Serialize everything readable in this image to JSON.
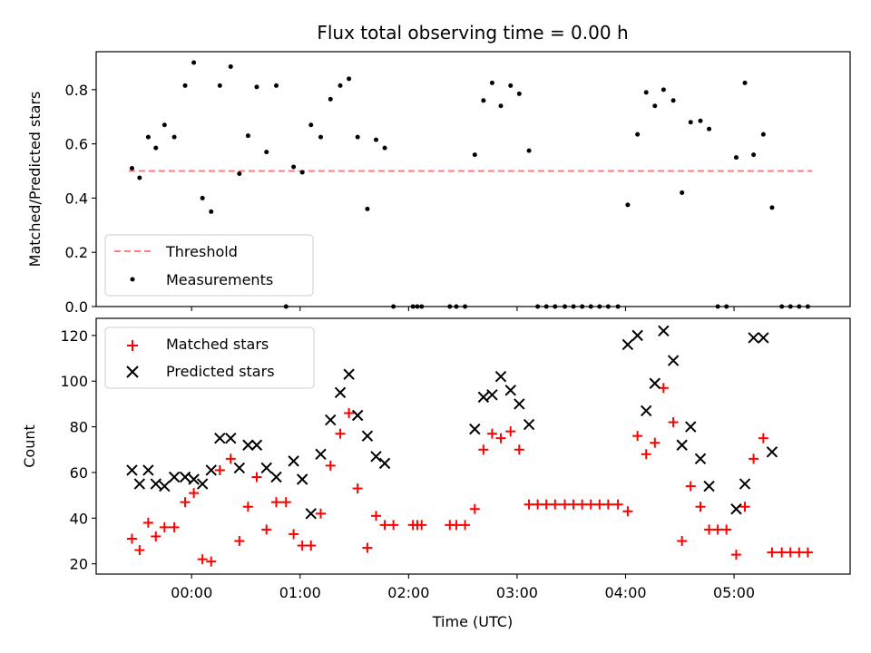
{
  "chart_data": [
    {
      "type": "scatter",
      "title": "Flux total observing time = 0.00 h",
      "xlabel": "",
      "ylabel": "Matched/Predicted stars",
      "xlim": [
        -0.88,
        6.07
      ],
      "ylim": [
        0,
        0.94
      ],
      "yticks": [
        0.0,
        0.2,
        0.4,
        0.6,
        0.8
      ],
      "ytick_labels": [
        "0.0",
        "0.2",
        "0.4",
        "0.6",
        "0.8"
      ],
      "xticks": [
        0,
        1,
        2,
        3,
        4,
        5
      ],
      "legend_position": "lower-left",
      "threshold": {
        "name": "Threshold",
        "value": 0.5,
        "x_range": [
          -0.58,
          5.72
        ],
        "color": "#ff7f7f",
        "style": "dashed"
      },
      "series": [
        {
          "name": "Measurements",
          "color": "#000000",
          "marker": "dot",
          "x": [
            -0.55,
            -0.48,
            -0.4,
            -0.33,
            -0.25,
            -0.16,
            -0.06,
            0.02,
            0.1,
            0.18,
            0.26,
            0.36,
            0.44,
            0.52,
            0.6,
            0.69,
            0.78,
            0.87,
            0.94,
            1.02,
            1.1,
            1.19,
            1.28,
            1.37,
            1.45,
            1.53,
            1.62,
            1.7,
            1.78,
            1.86,
            2.04,
            2.08,
            2.12,
            2.38,
            2.44,
            2.52,
            2.61,
            2.69,
            2.77,
            2.85,
            2.94,
            3.02,
            3.11,
            3.19,
            3.27,
            3.35,
            3.44,
            3.52,
            3.6,
            3.68,
            3.76,
            3.84,
            3.93,
            4.02,
            4.11,
            4.19,
            4.27,
            4.35,
            4.44,
            4.52,
            4.6,
            4.69,
            4.77,
            4.85,
            4.93,
            5.02,
            5.1,
            5.18,
            5.27,
            5.35,
            5.44,
            5.52,
            5.6,
            5.68
          ],
          "y": [
            0.51,
            0.475,
            0.625,
            0.585,
            0.67,
            0.625,
            0.815,
            0.9,
            0.4,
            0.35,
            0.815,
            0.885,
            0.49,
            0.63,
            0.81,
            0.57,
            0.815,
            0.0,
            0.515,
            0.495,
            0.67,
            0.625,
            0.765,
            0.815,
            0.84,
            0.625,
            0.36,
            0.615,
            0.585,
            0.0,
            0.0,
            0.0,
            0.0,
            0.0,
            0.0,
            0.0,
            0.56,
            0.76,
            0.825,
            0.74,
            0.815,
            0.785,
            0.575,
            0.0,
            0.0,
            0.0,
            0.0,
            0.0,
            0.0,
            0.0,
            0.0,
            0.0,
            0.0,
            0.375,
            0.635,
            0.79,
            0.74,
            0.8,
            0.76,
            0.42,
            0.68,
            0.685,
            0.655,
            0.0,
            0.0,
            0.55,
            0.825,
            0.56,
            0.635,
            0.365,
            0.0,
            0.0,
            0.0,
            0.0
          ]
        }
      ]
    },
    {
      "type": "scatter",
      "title": "",
      "xlabel": "Time (UTC)",
      "ylabel": "Count",
      "xlim": [
        -0.88,
        6.07
      ],
      "ylim": [
        15.5,
        127.5
      ],
      "yticks": [
        20,
        40,
        60,
        80,
        100,
        120
      ],
      "ytick_labels": [
        "20",
        "40",
        "60",
        "80",
        "100",
        "120"
      ],
      "xticks": [
        0,
        1,
        2,
        3,
        4,
        5
      ],
      "xtick_labels": [
        "00:00",
        "01:00",
        "02:00",
        "03:00",
        "04:00",
        "05:00"
      ],
      "legend_position": "upper-left",
      "series": [
        {
          "name": "Matched stars",
          "color": "#ff0000",
          "marker": "plus",
          "x": [
            -0.55,
            -0.48,
            -0.4,
            -0.33,
            -0.25,
            -0.16,
            -0.06,
            0.02,
            0.1,
            0.18,
            0.26,
            0.36,
            0.44,
            0.52,
            0.6,
            0.69,
            0.78,
            0.87,
            0.94,
            1.02,
            1.1,
            1.19,
            1.28,
            1.37,
            1.45,
            1.53,
            1.62,
            1.7,
            1.78,
            1.86,
            2.04,
            2.08,
            2.12,
            2.38,
            2.44,
            2.52,
            2.61,
            2.69,
            2.77,
            2.85,
            2.94,
            3.02,
            3.11,
            3.19,
            3.27,
            3.35,
            3.44,
            3.52,
            3.6,
            3.68,
            3.76,
            3.84,
            3.93,
            4.02,
            4.11,
            4.19,
            4.27,
            4.35,
            4.44,
            4.52,
            4.6,
            4.69,
            4.77,
            4.85,
            4.93,
            5.02,
            5.1,
            5.18,
            5.27,
            5.35,
            5.44,
            5.52,
            5.6,
            5.68
          ],
          "y": [
            31,
            26,
            38,
            32,
            36,
            36,
            47,
            51,
            22,
            21,
            61,
            66,
            30,
            45,
            58,
            35,
            47,
            47,
            33,
            28,
            28,
            42,
            63,
            77,
            86,
            53,
            27,
            41,
            37,
            37,
            37,
            37,
            37,
            37,
            37,
            37,
            44,
            70,
            77,
            75,
            78,
            70,
            46,
            46,
            46,
            46,
            46,
            46,
            46,
            46,
            46,
            46,
            46,
            43,
            76,
            68,
            73,
            97,
            82,
            30,
            54,
            45,
            35,
            35,
            35,
            24,
            45,
            66,
            75,
            25,
            25,
            25,
            25,
            25
          ]
        },
        {
          "name": "Predicted stars",
          "color": "#000000",
          "marker": "x",
          "x": [
            -0.55,
            -0.48,
            -0.4,
            -0.33,
            -0.25,
            -0.16,
            -0.06,
            0.02,
            0.1,
            0.18,
            0.26,
            0.36,
            0.44,
            0.52,
            0.6,
            0.69,
            0.78,
            0.94,
            1.02,
            1.1,
            1.19,
            1.28,
            1.37,
            1.45,
            1.53,
            1.62,
            1.7,
            1.78,
            2.61,
            2.69,
            2.77,
            2.85,
            2.94,
            3.02,
            3.11,
            4.02,
            4.11,
            4.19,
            4.27,
            4.35,
            4.44,
            4.52,
            4.6,
            4.69,
            4.77,
            5.02,
            5.1,
            5.18,
            5.27,
            5.35
          ],
          "y": [
            61,
            55,
            61,
            55,
            54,
            58,
            58,
            57,
            55,
            61,
            75,
            75,
            62,
            72,
            72,
            62,
            58,
            65,
            57,
            42,
            68,
            83,
            95,
            103,
            85,
            76,
            67,
            64,
            79,
            93,
            94,
            102,
            96,
            90,
            81,
            116,
            120,
            87,
            99,
            122,
            109,
            72,
            80,
            66,
            54,
            44,
            55,
            119,
            119,
            69
          ]
        }
      ]
    }
  ]
}
